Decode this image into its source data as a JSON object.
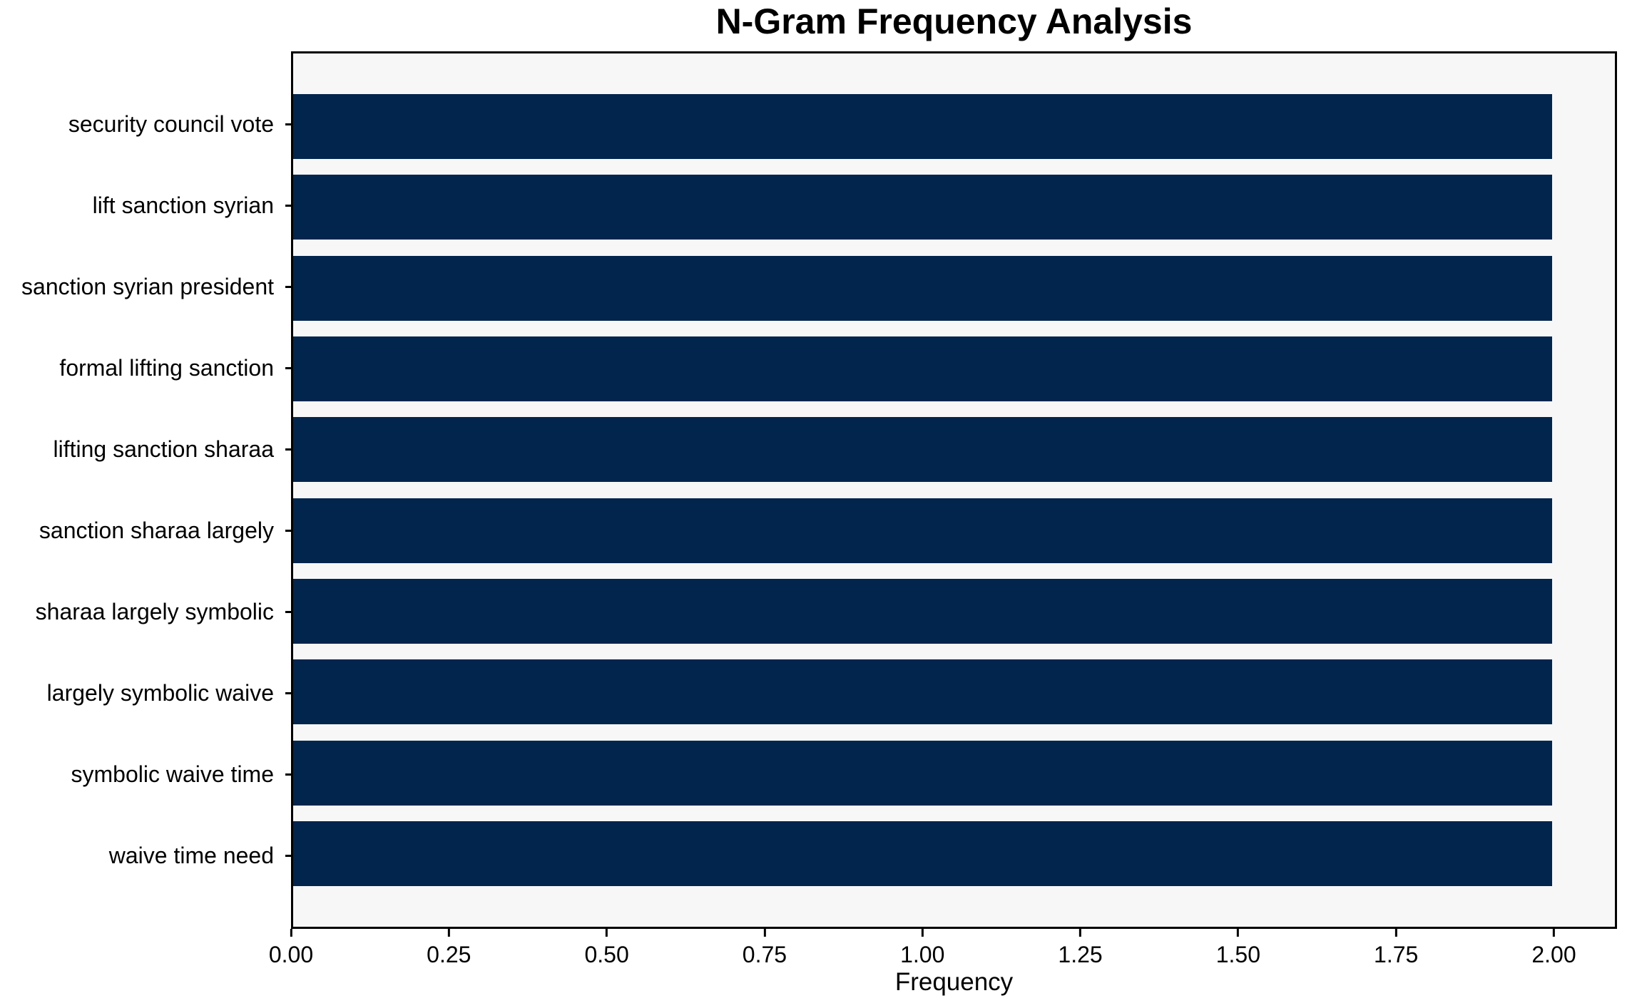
{
  "chart_data": {
    "type": "bar",
    "orientation": "horizontal",
    "title": "N-Gram Frequency Analysis",
    "xlabel": "Frequency",
    "ylabel": "",
    "categories": [
      "security council vote",
      "lift sanction syrian",
      "sanction syrian president",
      "formal lifting sanction",
      "lifting sanction sharaa",
      "sanction sharaa largely",
      "sharaa largely symbolic",
      "largely symbolic waive",
      "symbolic waive time",
      "waive time need"
    ],
    "values": [
      2,
      2,
      2,
      2,
      2,
      2,
      2,
      2,
      2,
      2
    ],
    "xlim": [
      0,
      2.1
    ],
    "xticks": [
      {
        "value": 0.0,
        "label": "0.00"
      },
      {
        "value": 0.25,
        "label": "0.25"
      },
      {
        "value": 0.5,
        "label": "0.50"
      },
      {
        "value": 0.75,
        "label": "0.75"
      },
      {
        "value": 1.0,
        "label": "1.00"
      },
      {
        "value": 1.25,
        "label": "1.25"
      },
      {
        "value": 1.5,
        "label": "1.50"
      },
      {
        "value": 1.75,
        "label": "1.75"
      },
      {
        "value": 2.0,
        "label": "2.00"
      }
    ],
    "grid": false,
    "legend": null,
    "colors": {
      "bar": "#02254d",
      "plot_bg": "#f7f7f7",
      "fig_bg": "#ffffff",
      "spine": "#000000",
      "text": "#000000"
    }
  }
}
